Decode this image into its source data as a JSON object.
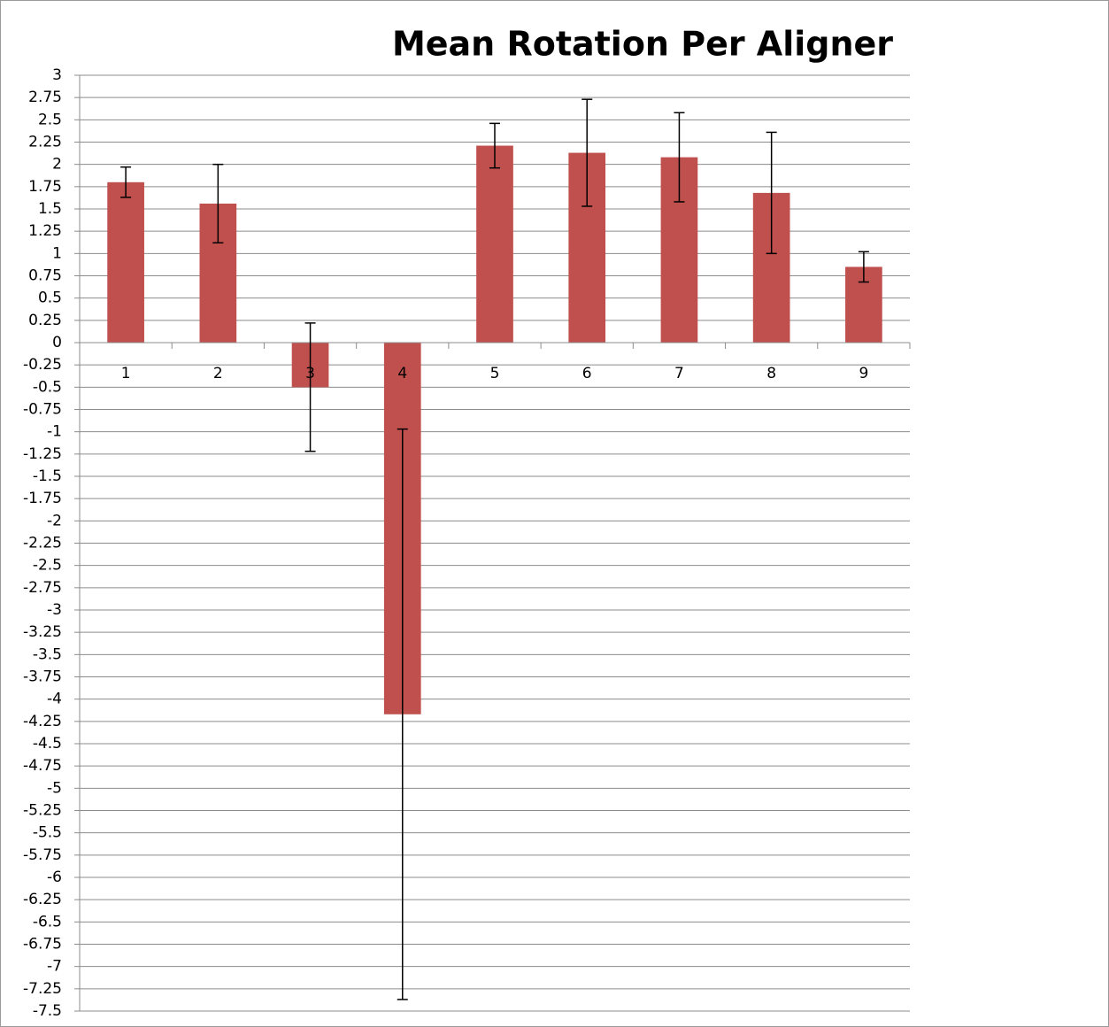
{
  "chart_data": {
    "type": "bar",
    "title": "Mean Rotation Per Aligner",
    "categories": [
      "1",
      "2",
      "3",
      "4",
      "5",
      "6",
      "7",
      "8",
      "9"
    ],
    "values": [
      1.8,
      1.56,
      -0.5,
      -4.17,
      2.21,
      2.13,
      2.08,
      1.68,
      0.85
    ],
    "errors": [
      0.17,
      0.44,
      0.72,
      3.2,
      0.25,
      0.6,
      0.5,
      0.68,
      0.17
    ],
    "color": "#c0504d",
    "ylim": [
      -7.5,
      3
    ],
    "yticks": [
      3,
      2.75,
      2.5,
      2.25,
      2,
      1.75,
      1.5,
      1.25,
      1,
      0.75,
      0.5,
      0.25,
      0,
      -0.25,
      -0.5,
      -0.75,
      -1,
      -1.25,
      -1.5,
      -1.75,
      -2,
      -2.25,
      -2.5,
      -2.75,
      -3,
      -3.25,
      -3.5,
      -3.75,
      -4,
      -4.25,
      -4.5,
      -4.75,
      -5,
      -5.25,
      -5.5,
      -5.75,
      -6,
      -6.25,
      -6.5,
      -6.75,
      -7,
      -7.25,
      -7.5
    ],
    "grid": true
  }
}
